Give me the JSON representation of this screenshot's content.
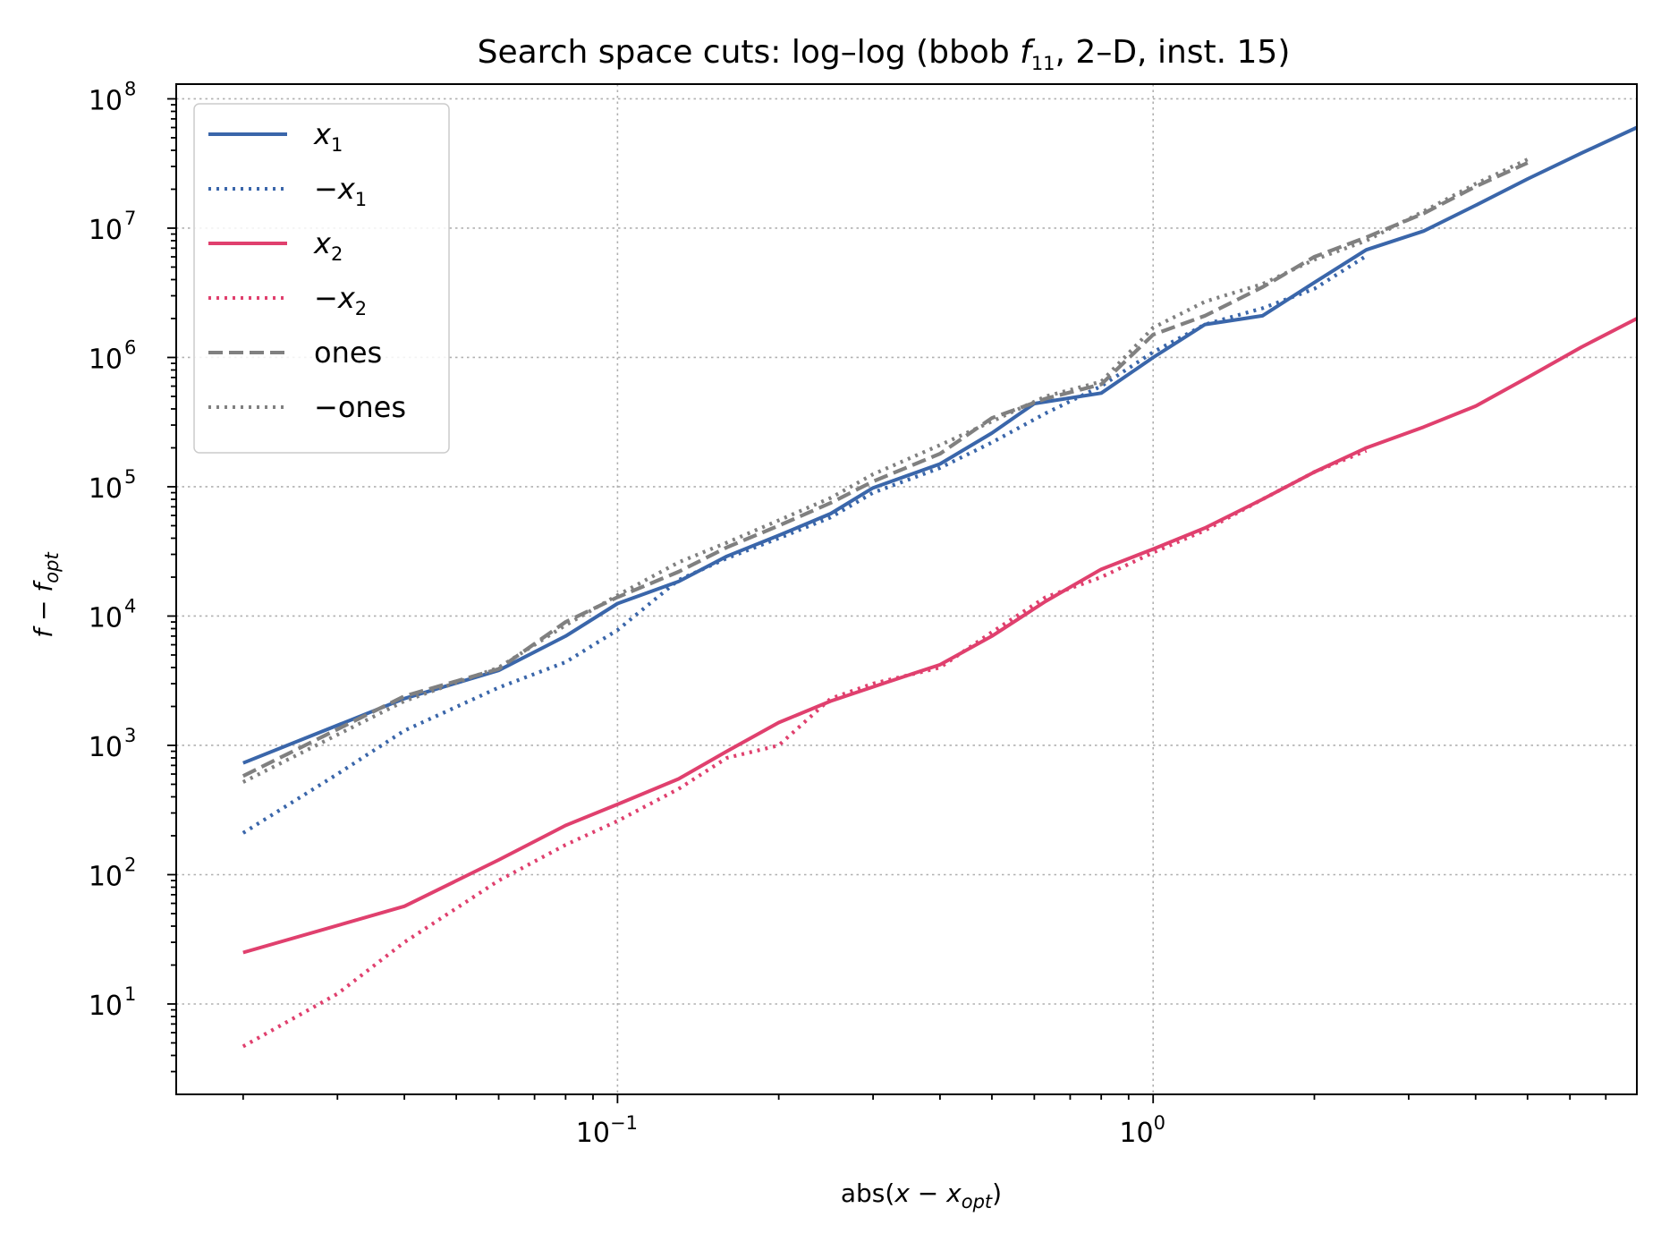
{
  "chart_data": {
    "type": "line",
    "title": "Search space cuts: log–log (bbob",
    "title_parts": {
      "prefix": "Search space cuts: log–log (bbob ",
      "func": "f",
      "func_sub": "11",
      "suffix": ", 2–D, inst. 15)"
    },
    "xlabel_parts": {
      "prefix": "abs(",
      "var": "x",
      "minus": " − ",
      "var2": "x",
      "sub": "opt",
      "suffix": ")"
    },
    "ylabel_parts": {
      "var": "f",
      "minus": " − ",
      "var2": "f",
      "sub": "opt"
    },
    "x_scale": "log",
    "y_scale": "log",
    "xlim": [
      0.015,
      8
    ],
    "ylim": [
      2,
      130000000
    ],
    "grid": true,
    "legend_position": "upper-left",
    "x_ticks": [
      {
        "base": "10",
        "exp": "−1",
        "value": 0.1
      },
      {
        "base": "10",
        "exp": "0",
        "value": 1
      }
    ],
    "y_ticks": [
      {
        "base": "10",
        "exp": "1",
        "value": 10
      },
      {
        "base": "10",
        "exp": "2",
        "value": 100
      },
      {
        "base": "10",
        "exp": "3",
        "value": 1000
      },
      {
        "base": "10",
        "exp": "4",
        "value": 10000
      },
      {
        "base": "10",
        "exp": "5",
        "value": 100000
      },
      {
        "base": "10",
        "exp": "6",
        "value": 1000000
      },
      {
        "base": "10",
        "exp": "7",
        "value": 10000000
      },
      {
        "base": "10",
        "exp": "8",
        "value": 100000000
      }
    ],
    "series": [
      {
        "name": "x1",
        "label_main": "x",
        "label_sub": "1",
        "label_neg": false,
        "color": "#3a66aa",
        "style": "solid",
        "points": [
          [
            0.02,
            730
          ],
          [
            0.04,
            2300
          ],
          [
            0.06,
            3800
          ],
          [
            0.08,
            7000
          ],
          [
            0.1,
            12500
          ],
          [
            0.13,
            18500
          ],
          [
            0.16,
            29000
          ],
          [
            0.2,
            42000
          ],
          [
            0.25,
            62000
          ],
          [
            0.3,
            98000
          ],
          [
            0.4,
            150000
          ],
          [
            0.5,
            260000
          ],
          [
            0.6,
            440000
          ],
          [
            0.8,
            530000
          ],
          [
            1.0,
            1000000
          ],
          [
            1.25,
            1800000
          ],
          [
            1.6,
            2100000
          ],
          [
            2.0,
            3800000
          ],
          [
            2.5,
            6800000
          ],
          [
            3.2,
            9500000
          ],
          [
            4.0,
            15000000
          ],
          [
            5.0,
            24000000
          ],
          [
            6.3,
            38000000
          ],
          [
            8.0,
            60000000
          ]
        ]
      },
      {
        "name": "-x1",
        "label_main": "x",
        "label_sub": "1",
        "label_neg": true,
        "color": "#3a66aa",
        "style": "dotted",
        "points": [
          [
            0.02,
            210
          ],
          [
            0.03,
            600
          ],
          [
            0.04,
            1300
          ],
          [
            0.06,
            2800
          ],
          [
            0.08,
            4400
          ],
          [
            0.1,
            7800
          ],
          [
            0.13,
            19000
          ],
          [
            0.16,
            28000
          ],
          [
            0.2,
            40000
          ],
          [
            0.25,
            58000
          ],
          [
            0.3,
            90000
          ],
          [
            0.4,
            140000
          ],
          [
            0.5,
            220000
          ],
          [
            0.63,
            370000
          ],
          [
            0.8,
            600000
          ],
          [
            1.0,
            1100000
          ],
          [
            1.25,
            1800000
          ],
          [
            1.6,
            2400000
          ],
          [
            2.0,
            3400000
          ],
          [
            2.5,
            6100000
          ]
        ]
      },
      {
        "name": "x2",
        "label_main": "x",
        "label_sub": "2",
        "label_neg": false,
        "color": "#e0406e",
        "style": "solid",
        "points": [
          [
            0.02,
            25
          ],
          [
            0.04,
            57
          ],
          [
            0.06,
            130
          ],
          [
            0.08,
            240
          ],
          [
            0.1,
            350
          ],
          [
            0.13,
            550
          ],
          [
            0.16,
            900
          ],
          [
            0.2,
            1500
          ],
          [
            0.25,
            2200
          ],
          [
            0.32,
            3100
          ],
          [
            0.4,
            4200
          ],
          [
            0.5,
            7000
          ],
          [
            0.63,
            13000
          ],
          [
            0.8,
            23000
          ],
          [
            1.0,
            33000
          ],
          [
            1.25,
            48000
          ],
          [
            1.6,
            80000
          ],
          [
            2.0,
            130000
          ],
          [
            2.5,
            200000
          ],
          [
            3.2,
            290000
          ],
          [
            4.0,
            420000
          ],
          [
            5.0,
            700000
          ],
          [
            6.3,
            1200000
          ],
          [
            8.0,
            2000000
          ]
        ]
      },
      {
        "name": "-x2",
        "label_main": "x",
        "label_sub": "2",
        "label_neg": true,
        "color": "#e0406e",
        "style": "dotted",
        "points": [
          [
            0.02,
            4.7
          ],
          [
            0.03,
            12
          ],
          [
            0.04,
            30
          ],
          [
            0.06,
            90
          ],
          [
            0.08,
            170
          ],
          [
            0.1,
            260
          ],
          [
            0.13,
            460
          ],
          [
            0.16,
            800
          ],
          [
            0.2,
            1000
          ],
          [
            0.25,
            2300
          ],
          [
            0.3,
            3000
          ],
          [
            0.4,
            4000
          ],
          [
            0.5,
            7500
          ],
          [
            0.63,
            14000
          ],
          [
            0.8,
            20000
          ],
          [
            1.0,
            31000
          ],
          [
            1.25,
            46000
          ],
          [
            1.6,
            80000
          ],
          [
            2.0,
            130000
          ],
          [
            2.5,
            190000
          ]
        ]
      },
      {
        "name": "ones",
        "label_main": "ones",
        "label_sub": "",
        "label_neg": false,
        "color": "#808080",
        "style": "dashed",
        "points": [
          [
            0.02,
            580
          ],
          [
            0.04,
            2400
          ],
          [
            0.06,
            3900
          ],
          [
            0.08,
            9000
          ],
          [
            0.1,
            14000
          ],
          [
            0.13,
            22000
          ],
          [
            0.16,
            34000
          ],
          [
            0.2,
            50000
          ],
          [
            0.25,
            75000
          ],
          [
            0.3,
            110000
          ],
          [
            0.4,
            180000
          ],
          [
            0.5,
            340000
          ],
          [
            0.63,
            480000
          ],
          [
            0.8,
            620000
          ],
          [
            1.0,
            1500000
          ],
          [
            1.25,
            2100000
          ],
          [
            1.6,
            3500000
          ],
          [
            2.0,
            6000000
          ],
          [
            2.5,
            8500000
          ],
          [
            3.2,
            13000000
          ],
          [
            4.0,
            21000000
          ],
          [
            5.0,
            32000000
          ]
        ]
      },
      {
        "name": "-ones",
        "label_main": "ones",
        "label_sub": "",
        "label_neg": true,
        "color": "#808080",
        "style": "dotted",
        "points": [
          [
            0.02,
            520
          ],
          [
            0.04,
            2200
          ],
          [
            0.06,
            4000
          ],
          [
            0.08,
            8500
          ],
          [
            0.1,
            14500
          ],
          [
            0.13,
            26000
          ],
          [
            0.16,
            37000
          ],
          [
            0.2,
            55000
          ],
          [
            0.25,
            82000
          ],
          [
            0.3,
            125000
          ],
          [
            0.4,
            210000
          ],
          [
            0.5,
            320000
          ],
          [
            0.63,
            500000
          ],
          [
            0.8,
            650000
          ],
          [
            1.0,
            1700000
          ],
          [
            1.25,
            2700000
          ],
          [
            1.6,
            3700000
          ],
          [
            2.0,
            5700000
          ],
          [
            2.5,
            8000000
          ],
          [
            3.2,
            13500000
          ],
          [
            4.0,
            22000000
          ],
          [
            5.0,
            34000000
          ]
        ]
      }
    ]
  }
}
